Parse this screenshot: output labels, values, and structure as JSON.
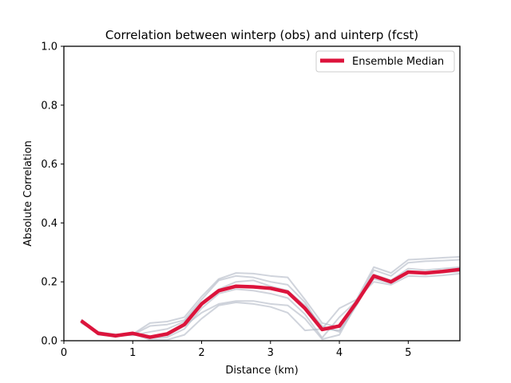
{
  "chart_data": {
    "type": "line",
    "title": "Correlation between winterp (obs) and uinterp (fcst)",
    "xlabel": "Distance (km)",
    "ylabel": "Absolute Correlation",
    "xlim": [
      0,
      5.75
    ],
    "ylim": [
      0,
      1.0
    ],
    "x_ticks": [
      0,
      1,
      2,
      3,
      4,
      5
    ],
    "x_tick_labels": [
      "0",
      "1",
      "2",
      "3",
      "4",
      "5"
    ],
    "y_ticks": [
      0.0,
      0.2,
      0.4,
      0.6,
      0.8,
      1.0
    ],
    "y_tick_labels": [
      "0.0",
      "0.2",
      "0.4",
      "0.6",
      "0.8",
      "1.0"
    ],
    "grid": false,
    "legend_position": "top-right",
    "x": [
      0.25,
      0.5,
      0.75,
      1.0,
      1.25,
      1.5,
      1.75,
      2.0,
      2.25,
      2.5,
      2.75,
      3.0,
      3.25,
      3.5,
      3.75,
      4.0,
      4.25,
      4.5,
      4.75,
      5.0,
      5.25,
      5.5,
      5.75
    ],
    "series": [
      {
        "name": "Ensemble Median",
        "color": "#dc143c",
        "values": [
          0.068,
          0.025,
          0.017,
          0.025,
          0.012,
          0.023,
          0.055,
          0.125,
          0.17,
          0.185,
          0.183,
          0.178,
          0.165,
          0.11,
          0.038,
          0.05,
          0.13,
          0.22,
          0.2,
          0.233,
          0.23,
          0.235,
          0.242
        ]
      }
    ],
    "ensemble_members": {
      "color": "#b0b8c4",
      "values": [
        [
          0.065,
          0.03,
          0.02,
          0.022,
          0.06,
          0.065,
          0.08,
          0.15,
          0.21,
          0.23,
          0.228,
          0.22,
          0.215,
          0.14,
          0.06,
          0.045,
          0.14,
          0.25,
          0.23,
          0.275,
          0.278,
          0.282,
          0.285
        ],
        [
          0.07,
          0.02,
          0.015,
          0.02,
          0.05,
          0.055,
          0.07,
          0.14,
          0.205,
          0.22,
          0.215,
          0.2,
          0.19,
          0.13,
          0.04,
          0.035,
          0.13,
          0.24,
          0.22,
          0.265,
          0.27,
          0.272,
          0.275
        ],
        [
          0.06,
          0.028,
          0.022,
          0.018,
          0.03,
          0.04,
          0.065,
          0.13,
          0.175,
          0.2,
          0.205,
          0.185,
          0.17,
          0.12,
          0.05,
          0.03,
          0.12,
          0.225,
          0.205,
          0.245,
          0.24,
          0.245,
          0.25
        ],
        [
          0.072,
          0.025,
          0.012,
          0.028,
          0.008,
          0.012,
          0.04,
          0.11,
          0.16,
          0.175,
          0.17,
          0.16,
          0.145,
          0.09,
          0.01,
          0.08,
          0.135,
          0.21,
          0.195,
          0.23,
          0.228,
          0.232,
          0.235
        ],
        [
          0.068,
          0.022,
          0.018,
          0.024,
          0.003,
          0.003,
          0.02,
          0.075,
          0.12,
          0.13,
          0.125,
          0.115,
          0.095,
          0.035,
          0.04,
          0.11,
          0.14,
          0.2,
          0.19,
          0.22,
          0.218,
          0.222,
          0.228
        ],
        [
          0.064,
          0.026,
          0.016,
          0.026,
          0.015,
          0.018,
          0.05,
          0.095,
          0.125,
          0.135,
          0.135,
          0.125,
          0.12,
          0.075,
          0.005,
          0.02,
          0.125,
          0.215,
          0.2,
          0.235,
          0.232,
          0.236,
          0.24
        ]
      ]
    }
  }
}
